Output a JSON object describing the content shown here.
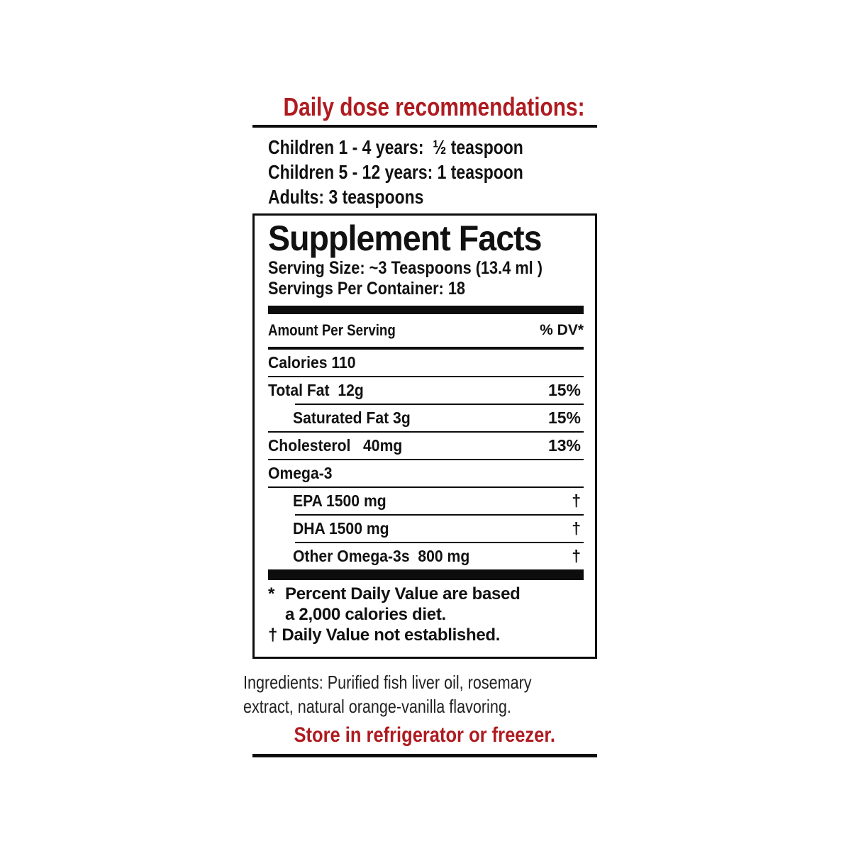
{
  "colors": {
    "red": "#ae1b20",
    "black": "#0d0d0d",
    "background": "#ffffff"
  },
  "daily_dose": {
    "title": "Daily dose recommendations:",
    "lines": [
      "Children 1 - 4 years:  ½ teaspoon",
      "Children 5 - 12 years: 1 teaspoon",
      "Adults: 3 teaspoons"
    ]
  },
  "supplement_facts": {
    "title": "Supplement Facts",
    "serving_size": "Serving Size: ~3 Teaspoons (13.4 ml )",
    "servings_per_container": "Servings Per Container: 18",
    "amount_per_serving": "Amount Per Serving",
    "dv_header": "% DV*",
    "rows": [
      {
        "label": "Calories 110",
        "value": ""
      },
      {
        "label": "Total Fat  12g",
        "value": "15%"
      },
      {
        "label": "Saturated Fat 3g",
        "value": "15%"
      },
      {
        "label": "Cholesterol   40mg",
        "value": "13%"
      },
      {
        "label": "Omega-3",
        "value": ""
      },
      {
        "label": "EPA 1500 mg",
        "value": "†"
      },
      {
        "label": "DHA 1500 mg",
        "value": "†"
      },
      {
        "label": "Other Omega-3s  800 mg",
        "value": "†"
      }
    ],
    "footnotes": {
      "star": "*",
      "star_line1": "Percent Daily Value are based",
      "star_line2": "a 2,000 calories diet.",
      "dagger_line": "† Daily Value not established."
    }
  },
  "ingredients": {
    "line1": "Ingredients: Purified fish liver oil, rosemary",
    "line2": "extract, natural orange-vanilla flavoring."
  },
  "storage": "Store in refrigerator or freezer."
}
